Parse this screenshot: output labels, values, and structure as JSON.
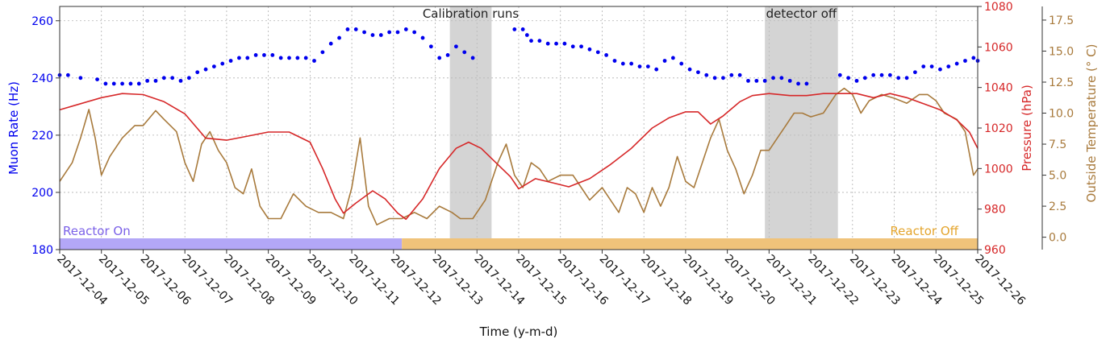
{
  "chart_data": {
    "type": "scatter",
    "xlabel": "Time (y-m-d)",
    "x_range": [
      "2017-12-04",
      "2017-12-26"
    ],
    "x_ticks": [
      "2017-12-04",
      "2017-12-05",
      "2017-12-06",
      "2017-12-07",
      "2017-12-08",
      "2017-12-09",
      "2017-12-10",
      "2017-12-11",
      "2017-12-12",
      "2017-12-13",
      "2017-12-14",
      "2017-12-15",
      "2017-12-16",
      "2017-12-17",
      "2017-12-18",
      "2017-12-19",
      "2017-12-20",
      "2017-12-21",
      "2017-12-22",
      "2017-12-23",
      "2017-12-24",
      "2017-12-25",
      "2017-12-26"
    ],
    "grid": true,
    "axes": {
      "left": {
        "label": "Muon Rate (Hz)",
        "range": [
          180,
          265
        ],
        "ticks": [
          180,
          200,
          220,
          240,
          260
        ],
        "color": "#0000ee"
      },
      "right_inner": {
        "label": "Pressure (hPa)",
        "range": [
          960,
          1080
        ],
        "ticks": [
          960,
          980,
          1000,
          1020,
          1040,
          1060,
          1080
        ],
        "color": "#d62728"
      },
      "right_outer": {
        "label": "Outside Temperature (° C)",
        "range": [
          -1,
          18.6
        ],
        "ticks": [
          "0.0",
          "2.5",
          "5.0",
          "7.5",
          "10.0",
          "12.5",
          "15.0",
          "17.5"
        ],
        "color": "#a87a3c"
      }
    },
    "shaded_regions": [
      {
        "label": "Calibration runs",
        "start": "2017-12-13.35",
        "end": "2017-12-14.35",
        "color": "#bdbdbd"
      },
      {
        "label": "detector off",
        "start": "2017-12-20.9",
        "end": "2017-12-22.65",
        "color": "#bdbdbd"
      }
    ],
    "status_bars": [
      {
        "label": "Reactor On",
        "start": "2017-12-04",
        "end": "2017-12-12.2",
        "color": "#b3a7f7",
        "text_color": "#7b61e8"
      },
      {
        "label": "Reactor Off",
        "start": "2017-12-12.2",
        "end": "2017-12-26",
        "color": "#f0c37a",
        "text_color": "#e4a52e"
      }
    ],
    "series": [
      {
        "axis": "left",
        "kind": "scatter",
        "color": "#0000ee",
        "points_day_value": [
          [
            0.0,
            241
          ],
          [
            0.2,
            241
          ],
          [
            0.5,
            240
          ],
          [
            0.9,
            239.5
          ],
          [
            1.1,
            238
          ],
          [
            1.3,
            238
          ],
          [
            1.5,
            238
          ],
          [
            1.7,
            238
          ],
          [
            1.9,
            238
          ],
          [
            2.1,
            239
          ],
          [
            2.3,
            239
          ],
          [
            2.5,
            240
          ],
          [
            2.7,
            240
          ],
          [
            2.9,
            239
          ],
          [
            3.1,
            240
          ],
          [
            3.3,
            242
          ],
          [
            3.5,
            243
          ],
          [
            3.7,
            244
          ],
          [
            3.9,
            245
          ],
          [
            4.1,
            246
          ],
          [
            4.3,
            247
          ],
          [
            4.5,
            247
          ],
          [
            4.7,
            248
          ],
          [
            4.9,
            248
          ],
          [
            5.1,
            248
          ],
          [
            5.3,
            247
          ],
          [
            5.5,
            247
          ],
          [
            5.7,
            247
          ],
          [
            5.9,
            247
          ],
          [
            6.1,
            246
          ],
          [
            6.3,
            249
          ],
          [
            6.5,
            252
          ],
          [
            6.7,
            254
          ],
          [
            6.9,
            257
          ],
          [
            7.1,
            257
          ],
          [
            7.3,
            256
          ],
          [
            7.5,
            255
          ],
          [
            7.7,
            255
          ],
          [
            7.9,
            256
          ],
          [
            8.1,
            256
          ],
          [
            8.3,
            257
          ],
          [
            8.5,
            256
          ],
          [
            8.7,
            254
          ],
          [
            8.9,
            251
          ],
          [
            9.1,
            247
          ],
          [
            9.3,
            248
          ],
          [
            9.5,
            251
          ],
          [
            9.7,
            249
          ],
          [
            9.9,
            247
          ],
          [
            10.9,
            257
          ],
          [
            11.1,
            257
          ],
          [
            11.2,
            255
          ],
          [
            11.3,
            253
          ],
          [
            11.5,
            253
          ],
          [
            11.7,
            252
          ],
          [
            11.9,
            252
          ],
          [
            12.1,
            252
          ],
          [
            12.3,
            251
          ],
          [
            12.5,
            251
          ],
          [
            12.7,
            250
          ],
          [
            12.9,
            249
          ],
          [
            13.1,
            248
          ],
          [
            13.3,
            246
          ],
          [
            13.5,
            245
          ],
          [
            13.7,
            245
          ],
          [
            13.9,
            244
          ],
          [
            14.1,
            244
          ],
          [
            14.3,
            243
          ],
          [
            14.5,
            246
          ],
          [
            14.7,
            247
          ],
          [
            14.9,
            245
          ],
          [
            15.1,
            243
          ],
          [
            15.3,
            242
          ],
          [
            15.5,
            241
          ],
          [
            15.7,
            240
          ],
          [
            15.9,
            240
          ],
          [
            16.1,
            241
          ],
          [
            16.3,
            241
          ],
          [
            16.5,
            239
          ],
          [
            16.7,
            239
          ],
          [
            16.9,
            239
          ],
          [
            17.1,
            240
          ],
          [
            17.3,
            240
          ],
          [
            17.5,
            239
          ],
          [
            17.7,
            238
          ],
          [
            17.9,
            238
          ],
          [
            18.7,
            241
          ],
          [
            18.9,
            240
          ],
          [
            19.1,
            239
          ],
          [
            19.3,
            240
          ],
          [
            19.5,
            241
          ],
          [
            19.7,
            241
          ],
          [
            19.9,
            241
          ],
          [
            20.1,
            240
          ],
          [
            20.3,
            240
          ],
          [
            20.5,
            242
          ],
          [
            20.7,
            244
          ],
          [
            20.9,
            244
          ],
          [
            21.1,
            243
          ],
          [
            21.3,
            244
          ],
          [
            21.5,
            245
          ],
          [
            21.7,
            246
          ],
          [
            21.9,
            247
          ],
          [
            22.0,
            246
          ]
        ]
      },
      {
        "axis": "right_inner",
        "kind": "line",
        "color": "#d62728",
        "points_day_value": [
          [
            0.0,
            1029
          ],
          [
            0.5,
            1032
          ],
          [
            1.0,
            1035
          ],
          [
            1.5,
            1037
          ],
          [
            2.0,
            1036.5
          ],
          [
            2.5,
            1033
          ],
          [
            3.0,
            1027
          ],
          [
            3.5,
            1015
          ],
          [
            4.0,
            1014
          ],
          [
            4.5,
            1016
          ],
          [
            5.0,
            1018
          ],
          [
            5.5,
            1018
          ],
          [
            6.0,
            1013
          ],
          [
            6.3,
            1000
          ],
          [
            6.6,
            985
          ],
          [
            6.8,
            978
          ],
          [
            7.1,
            983
          ],
          [
            7.5,
            989
          ],
          [
            7.8,
            985
          ],
          [
            8.1,
            978
          ],
          [
            8.3,
            975
          ],
          [
            8.7,
            985
          ],
          [
            9.1,
            1000
          ],
          [
            9.5,
            1010
          ],
          [
            9.8,
            1013
          ],
          [
            10.1,
            1010
          ],
          [
            10.5,
            1002
          ],
          [
            10.8,
            996
          ],
          [
            11.0,
            990
          ],
          [
            11.4,
            995
          ],
          [
            11.8,
            993
          ],
          [
            12.2,
            991
          ],
          [
            12.7,
            995
          ],
          [
            13.2,
            1002
          ],
          [
            13.7,
            1010
          ],
          [
            14.2,
            1020
          ],
          [
            14.6,
            1025
          ],
          [
            15.0,
            1028
          ],
          [
            15.3,
            1028
          ],
          [
            15.6,
            1022
          ],
          [
            15.9,
            1026
          ],
          [
            16.3,
            1033
          ],
          [
            16.6,
            1036
          ],
          [
            17.0,
            1037
          ],
          [
            17.5,
            1036
          ],
          [
            17.9,
            1036
          ],
          [
            18.3,
            1037
          ],
          [
            18.7,
            1037
          ],
          [
            19.1,
            1037
          ],
          [
            19.5,
            1035
          ],
          [
            19.9,
            1037
          ],
          [
            20.3,
            1035
          ],
          [
            20.7,
            1032
          ],
          [
            21.1,
            1029
          ],
          [
            21.5,
            1024
          ],
          [
            21.8,
            1018
          ],
          [
            22.0,
            1010
          ]
        ]
      },
      {
        "axis": "right_outer",
        "kind": "line",
        "color": "#a87a3c",
        "points_day_value": [
          [
            0.0,
            4.5
          ],
          [
            0.3,
            6.0
          ],
          [
            0.5,
            8.0
          ],
          [
            0.7,
            10.3
          ],
          [
            0.85,
            8.0
          ],
          [
            1.0,
            5.0
          ],
          [
            1.2,
            6.5
          ],
          [
            1.5,
            8.0
          ],
          [
            1.8,
            9.0
          ],
          [
            2.0,
            9.0
          ],
          [
            2.3,
            10.2
          ],
          [
            2.5,
            9.5
          ],
          [
            2.8,
            8.5
          ],
          [
            3.0,
            6.0
          ],
          [
            3.2,
            4.5
          ],
          [
            3.4,
            7.5
          ],
          [
            3.6,
            8.5
          ],
          [
            3.8,
            7.0
          ],
          [
            4.0,
            6.0
          ],
          [
            4.2,
            4.0
          ],
          [
            4.4,
            3.5
          ],
          [
            4.6,
            5.5
          ],
          [
            4.8,
            2.5
          ],
          [
            5.0,
            1.5
          ],
          [
            5.3,
            1.5
          ],
          [
            5.6,
            3.5
          ],
          [
            5.9,
            2.5
          ],
          [
            6.2,
            2.0
          ],
          [
            6.5,
            2.0
          ],
          [
            6.8,
            1.5
          ],
          [
            7.0,
            4.0
          ],
          [
            7.2,
            8.0
          ],
          [
            7.4,
            2.5
          ],
          [
            7.6,
            1.0
          ],
          [
            7.9,
            1.5
          ],
          [
            8.2,
            1.5
          ],
          [
            8.5,
            2.0
          ],
          [
            8.8,
            1.5
          ],
          [
            9.1,
            2.5
          ],
          [
            9.4,
            2.0
          ],
          [
            9.6,
            1.5
          ],
          [
            9.9,
            1.5
          ],
          [
            10.2,
            3.0
          ],
          [
            10.5,
            6.0
          ],
          [
            10.7,
            7.5
          ],
          [
            10.9,
            5.0
          ],
          [
            11.1,
            4.0
          ],
          [
            11.3,
            6.0
          ],
          [
            11.5,
            5.5
          ],
          [
            11.7,
            4.5
          ],
          [
            12.0,
            5.0
          ],
          [
            12.3,
            5.0
          ],
          [
            12.5,
            4.0
          ],
          [
            12.7,
            3.0
          ],
          [
            13.0,
            4.0
          ],
          [
            13.2,
            3.0
          ],
          [
            13.4,
            2.0
          ],
          [
            13.6,
            4.0
          ],
          [
            13.8,
            3.5
          ],
          [
            14.0,
            2.0
          ],
          [
            14.2,
            4.0
          ],
          [
            14.4,
            2.5
          ],
          [
            14.6,
            4.0
          ],
          [
            14.8,
            6.5
          ],
          [
            15.0,
            4.5
          ],
          [
            15.2,
            4.0
          ],
          [
            15.4,
            6.0
          ],
          [
            15.6,
            8.0
          ],
          [
            15.8,
            9.5
          ],
          [
            16.0,
            7.0
          ],
          [
            16.2,
            5.5
          ],
          [
            16.4,
            3.5
          ],
          [
            16.6,
            5.0
          ],
          [
            16.8,
            7.0
          ],
          [
            17.0,
            7.0
          ],
          [
            17.2,
            8.0
          ],
          [
            17.4,
            9.0
          ],
          [
            17.6,
            10.0
          ],
          [
            17.8,
            10.0
          ],
          [
            18.0,
            9.7
          ],
          [
            18.3,
            10.0
          ],
          [
            18.6,
            11.5
          ],
          [
            18.8,
            12.0
          ],
          [
            19.0,
            11.5
          ],
          [
            19.2,
            10.0
          ],
          [
            19.4,
            11.0
          ],
          [
            19.7,
            11.5
          ],
          [
            20.0,
            11.2
          ],
          [
            20.3,
            10.8
          ],
          [
            20.6,
            11.5
          ],
          [
            20.8,
            11.5
          ],
          [
            21.0,
            11.0
          ],
          [
            21.2,
            10.0
          ],
          [
            21.5,
            9.5
          ],
          [
            21.7,
            8.5
          ],
          [
            21.9,
            5.0
          ],
          [
            22.0,
            5.5
          ]
        ]
      }
    ]
  }
}
